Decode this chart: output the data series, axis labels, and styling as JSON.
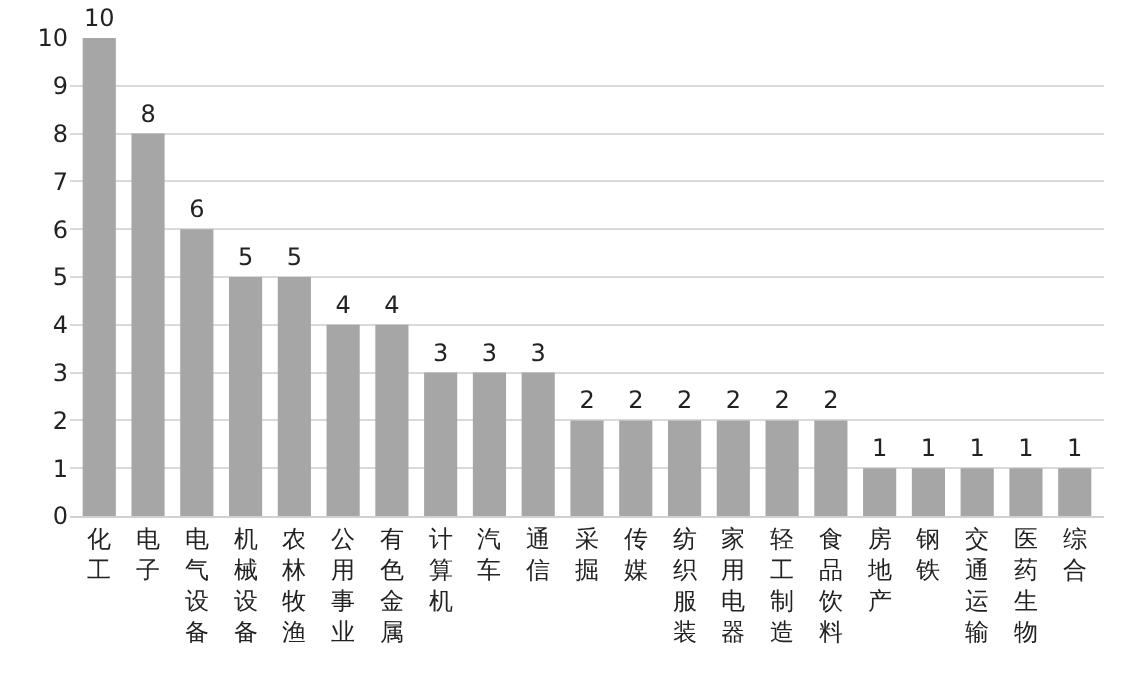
{
  "chart_data": {
    "type": "bar",
    "categories": [
      "化工",
      "电子",
      "电气设备",
      "机械设备",
      "农林牧渔",
      "公用事业",
      "有色金属",
      "计算机",
      "汽车",
      "通信",
      "采掘",
      "传媒",
      "纺织服装",
      "家用电器",
      "轻工制造",
      "食品饮料",
      "房地产",
      "钢铁",
      "交通运输",
      "医药生物",
      "综合"
    ],
    "values": [
      10,
      8,
      6,
      5,
      5,
      4,
      4,
      3,
      3,
      3,
      2,
      2,
      2,
      2,
      2,
      2,
      1,
      1,
      1,
      1,
      1
    ],
    "color": "#a6a6a6",
    "ylim": [
      0,
      10
    ],
    "yticks": [
      0,
      1,
      2,
      3,
      4,
      5,
      6,
      7,
      8,
      9,
      10
    ],
    "grid": "y",
    "data_labels": true,
    "legend": false
  }
}
